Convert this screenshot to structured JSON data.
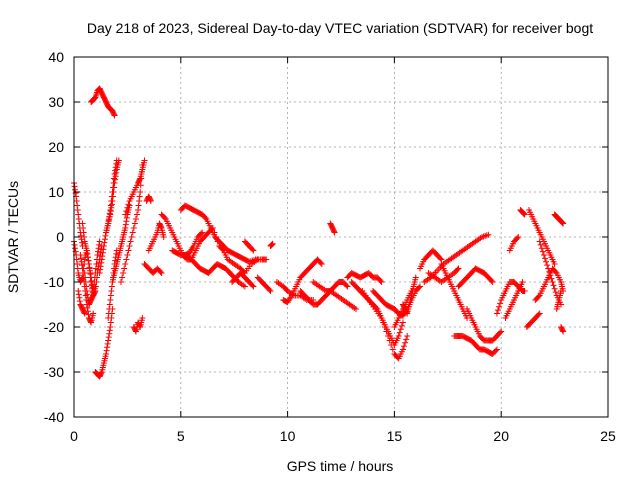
{
  "chart_data": {
    "type": "scatter",
    "title": "Day 218 of 2023, Sidereal Day-to-day VTEC variation (SDTVAR) for receiver bogt",
    "xlabel": "GPS time / hours",
    "ylabel": "SDTVAR / TECUs",
    "xlim": [
      0,
      25
    ],
    "ylim": [
      -40,
      40
    ],
    "xticks": [
      0,
      5,
      10,
      15,
      20,
      25
    ],
    "yticks": [
      -40,
      -30,
      -20,
      -10,
      0,
      10,
      20,
      30,
      40
    ],
    "grid": true,
    "marker": "plus",
    "color": "#ff0000",
    "series": [
      {
        "name": "s01",
        "x": [
          0.0,
          0.1,
          0.2,
          0.3,
          0.4
        ],
        "y": [
          12,
          9,
          5,
          1,
          -2
        ]
      },
      {
        "name": "s02",
        "x": [
          0.0,
          0.1,
          0.2,
          0.3,
          0.4,
          0.5,
          0.6,
          0.7,
          0.8,
          0.9,
          1.0,
          1.1,
          1.2
        ],
        "y": [
          -1,
          -4,
          -8,
          -10,
          -9,
          -5,
          -3,
          -6,
          -9,
          -12,
          -8,
          -4,
          -1
        ]
      },
      {
        "name": "s03",
        "x": [
          0.3,
          0.4,
          0.5,
          0.6,
          0.7,
          0.8,
          0.9
        ],
        "y": [
          -4,
          -7,
          -11,
          -15,
          -18,
          -19,
          -17
        ]
      },
      {
        "name": "s04",
        "x": [
          0.4,
          0.5,
          0.6,
          0.7,
          0.8,
          0.9,
          1.0
        ],
        "y": [
          3,
          -1,
          -3,
          -6,
          -10,
          -13,
          -11
        ]
      },
      {
        "name": "s05",
        "x": [
          0.5,
          0.6,
          0.7,
          0.8,
          0.9,
          1.0,
          1.1,
          1.2,
          1.3
        ],
        "y": [
          -8,
          -12,
          -15,
          -14,
          -13,
          -12,
          -8,
          -5,
          -2
        ]
      },
      {
        "name": "s06",
        "x": [
          0.2,
          0.3,
          0.4,
          0.5
        ],
        "y": [
          -12,
          -15,
          -16,
          -17
        ]
      },
      {
        "name": "s07",
        "x": [
          0.8,
          0.9,
          1.0,
          1.1,
          1.2,
          1.3,
          1.4,
          1.5,
          1.6,
          1.7,
          1.8,
          1.9
        ],
        "y": [
          30,
          30.5,
          31,
          32.5,
          33,
          32,
          31,
          30,
          29,
          28.5,
          28,
          27
        ]
      },
      {
        "name": "s08",
        "x": [
          1.0,
          1.1,
          1.2,
          1.3,
          1.4,
          1.5,
          1.6,
          1.7,
          1.8
        ],
        "y": [
          -30,
          -30.5,
          -31,
          -30,
          -28,
          -26,
          -23,
          -20,
          -16
        ]
      },
      {
        "name": "s09",
        "x": [
          1.2,
          1.3,
          1.4,
          1.5,
          1.6,
          1.7,
          1.8,
          1.9,
          2.0
        ],
        "y": [
          -8,
          -5,
          -2,
          1,
          3,
          6,
          10,
          14,
          17
        ]
      },
      {
        "name": "s10",
        "x": [
          1.6,
          1.7,
          1.8,
          1.9,
          2.0
        ],
        "y": [
          -18,
          -14,
          -10,
          -6,
          -3
        ]
      },
      {
        "name": "s11",
        "x": [
          1.8,
          1.9,
          2.0,
          2.1,
          2.2,
          2.3,
          2.4,
          2.5,
          2.6
        ],
        "y": [
          -10,
          -8,
          -6,
          -4,
          -2,
          0,
          2,
          5,
          7
        ]
      },
      {
        "name": "s12",
        "x": [
          1.5,
          1.6,
          1.7,
          1.8,
          1.9,
          2.0,
          2.1
        ],
        "y": [
          1,
          3,
          5,
          8,
          12,
          15,
          17
        ]
      },
      {
        "name": "s13",
        "x": [
          2.2,
          2.4,
          2.6,
          2.8,
          3.0,
          3.1,
          3.2
        ],
        "y": [
          -10,
          -6,
          -2,
          2,
          6,
          10,
          16
        ]
      },
      {
        "name": "s14",
        "x": [
          2.4,
          2.6,
          2.8,
          3.0,
          3.1,
          3.2,
          3.3
        ],
        "y": [
          5,
          8,
          10,
          12,
          13,
          15,
          17
        ]
      },
      {
        "name": "s15",
        "x": [
          2.8,
          2.9,
          3.0,
          3.1,
          3.2
        ],
        "y": [
          -20,
          -21,
          -19,
          -20,
          -18
        ]
      },
      {
        "name": "s16",
        "x": [
          3.3,
          3.5,
          3.7,
          3.9,
          4.1
        ],
        "y": [
          -6,
          -7,
          -8,
          -7,
          -8
        ]
      },
      {
        "name": "s17",
        "x": [
          3.5,
          3.7,
          3.9,
          4.0,
          4.1,
          4.2
        ],
        "y": [
          -3,
          -1,
          1,
          3,
          2,
          0
        ]
      },
      {
        "name": "s18",
        "x": [
          3.4,
          3.5,
          3.6
        ],
        "y": [
          8,
          9,
          8
        ]
      },
      {
        "name": "s19",
        "x": [
          4.1,
          4.3,
          4.5,
          4.7,
          4.9,
          5.1,
          5.3,
          5.5,
          5.7,
          5.9,
          6.1,
          6.3,
          6.5,
          6.8,
          7.0,
          7.2,
          7.5,
          7.8,
          8.0,
          8.3,
          8.6
        ],
        "y": [
          5,
          4,
          2,
          0,
          -2,
          -4,
          -5,
          -5,
          -3,
          -1,
          0,
          1,
          2,
          -2,
          -3,
          -5,
          -6,
          -7,
          -8,
          -6,
          -5
        ]
      },
      {
        "name": "s20",
        "x": [
          5.0,
          5.2,
          5.4,
          5.6,
          5.8,
          6.0,
          6.2,
          6.4,
          6.6,
          6.8,
          7.0,
          7.2,
          7.4,
          7.6,
          7.8,
          8.0,
          8.2,
          8.5,
          8.8,
          9.0
        ],
        "y": [
          6,
          7,
          6.5,
          6,
          5.5,
          5,
          4,
          2,
          0,
          -1,
          -2,
          -3,
          -3.5,
          -4,
          -4.5,
          -5,
          -5.5,
          -5,
          -5,
          -5
        ]
      },
      {
        "name": "s21",
        "x": [
          4.6,
          4.8,
          5.0,
          5.2,
          5.4,
          5.6,
          5.8,
          6.0
        ],
        "y": [
          -3,
          -3.5,
          -4,
          -4,
          -3.5,
          -2,
          0,
          1
        ]
      },
      {
        "name": "s22",
        "x": [
          5.3,
          5.5,
          5.7,
          5.9,
          6.1,
          6.3,
          6.5,
          6.7,
          6.9,
          7.1,
          7.3,
          7.5,
          7.7,
          8.0
        ],
        "y": [
          -4,
          -5,
          -6,
          -7,
          -7.5,
          -8,
          -7,
          -6,
          -6.5,
          -7,
          -8,
          -9,
          -10,
          -11
        ]
      },
      {
        "name": "s23",
        "x": [
          7.4,
          7.6,
          7.8,
          8.0,
          8.2,
          8.4
        ],
        "y": [
          -10,
          -9,
          -8,
          -9,
          -10,
          -11
        ]
      },
      {
        "name": "s24",
        "x": [
          8.6,
          8.8,
          9.0,
          9.2
        ],
        "y": [
          -9,
          -10,
          -11,
          -12
        ]
      },
      {
        "name": "s25",
        "x": [
          9.2,
          9.3
        ],
        "y": [
          -2,
          -1.5
        ]
      },
      {
        "name": "s26",
        "x": [
          8.0,
          8.2,
          8.4
        ],
        "y": [
          -1,
          -2,
          -3
        ]
      },
      {
        "name": "s27",
        "x": [
          9.5,
          9.8,
          10.0,
          10.3,
          10.6,
          10.9,
          11.2
        ],
        "y": [
          -10,
          -11,
          -12,
          -13,
          -13,
          -14,
          -14
        ]
      },
      {
        "name": "s28",
        "x": [
          9.8,
          10.0,
          10.2,
          10.4,
          10.6,
          10.8,
          11.0,
          11.2,
          11.4,
          11.6
        ],
        "y": [
          -14,
          -14.5,
          -13,
          -11,
          -9,
          -8,
          -7,
          -6,
          -5,
          -6
        ]
      },
      {
        "name": "s29",
        "x": [
          10.6,
          10.8,
          11.0,
          11.2,
          11.4,
          11.6,
          11.8,
          12.0,
          12.2,
          12.4,
          12.6,
          12.8
        ],
        "y": [
          -12,
          -13,
          -14,
          -15,
          -15,
          -14,
          -13,
          -12,
          -11,
          -10,
          -10,
          -11
        ]
      },
      {
        "name": "s30",
        "x": [
          11.2,
          11.5,
          11.8,
          12.0,
          12.3,
          12.6,
          12.9,
          13.2
        ],
        "y": [
          -10,
          -11,
          -12,
          -12,
          -13,
          -14,
          -15,
          -16
        ]
      },
      {
        "name": "s31",
        "x": [
          12.0,
          12.1,
          12.2
        ],
        "y": [
          3,
          2,
          1
        ]
      },
      {
        "name": "s32",
        "x": [
          12.8,
          13.0,
          13.2,
          13.4,
          13.6,
          13.8,
          14.0,
          14.2,
          14.4
        ],
        "y": [
          -9,
          -8,
          -8.5,
          -9,
          -8.5,
          -8,
          -9,
          -9,
          -10
        ]
      },
      {
        "name": "s33",
        "x": [
          13.0,
          13.2,
          13.4,
          13.6,
          13.8,
          14.0,
          14.2,
          14.4,
          14.6,
          14.8,
          15.0,
          15.2,
          15.4
        ],
        "y": [
          -10,
          -11,
          -12,
          -13,
          -14,
          -15,
          -16,
          -18,
          -20,
          -22,
          -24,
          -22,
          -19
        ]
      },
      {
        "name": "s34",
        "x": [
          13.5,
          13.8,
          14.1,
          14.4,
          14.7,
          15.0,
          15.2,
          15.4,
          15.6
        ],
        "y": [
          -12,
          -14,
          -16,
          -18,
          -22,
          -26,
          -27,
          -25,
          -22
        ]
      },
      {
        "name": "s35",
        "x": [
          14.0,
          14.2,
          14.4,
          14.6,
          14.8,
          15.0,
          15.2,
          15.4,
          15.6,
          15.8,
          16.0,
          16.2
        ],
        "y": [
          -12,
          -13,
          -14,
          -15,
          -15.5,
          -16,
          -17,
          -17.5,
          -16,
          -14,
          -12,
          -11
        ]
      },
      {
        "name": "s36",
        "x": [
          15.4,
          15.5,
          15.6,
          15.7,
          15.8,
          15.9,
          16.0
        ],
        "y": [
          -15,
          -16,
          -17,
          -15,
          -13,
          -11,
          -9
        ]
      },
      {
        "name": "s37",
        "x": [
          15.0,
          15.2,
          15.4,
          15.6,
          15.8
        ],
        "y": [
          -20,
          -18,
          -16,
          -14,
          -12
        ]
      },
      {
        "name": "s38",
        "x": [
          16.2,
          16.4,
          16.6,
          16.8,
          17.0,
          17.2
        ],
        "y": [
          -7,
          -5,
          -4,
          -3,
          -4,
          -5
        ]
      },
      {
        "name": "s39",
        "x": [
          16.4,
          16.7,
          17.0,
          17.3,
          17.6,
          17.9,
          18.2,
          18.5,
          18.8,
          19.1,
          19.4
        ],
        "y": [
          -10,
          -9,
          -7.5,
          -6,
          -5,
          -4,
          -3,
          -2,
          -1,
          0,
          0.5
        ]
      },
      {
        "name": "s40",
        "x": [
          16.6,
          16.9,
          17.2,
          17.5,
          17.8,
          18.0
        ],
        "y": [
          -8,
          -9,
          -10,
          -9,
          -8,
          -7
        ]
      },
      {
        "name": "s41",
        "x": [
          17.2,
          17.4,
          17.6,
          17.8,
          18.0,
          18.2,
          18.4
        ],
        "y": [
          -6,
          -8,
          -10,
          -12,
          -14,
          -16,
          -18
        ]
      },
      {
        "name": "s42",
        "x": [
          18.0,
          18.2,
          18.4,
          18.6,
          18.8,
          19.0,
          19.2,
          19.4,
          19.6
        ],
        "y": [
          -11,
          -10,
          -9,
          -8,
          -7,
          -7.5,
          -8,
          -9,
          -10
        ]
      },
      {
        "name": "s43",
        "x": [
          17.8,
          18.0,
          18.2,
          18.4,
          18.6,
          18.8,
          19.0,
          19.2,
          19.4,
          19.6,
          19.8
        ],
        "y": [
          -22,
          -22,
          -22,
          -22.5,
          -23,
          -24,
          -25,
          -25,
          -25.5,
          -26,
          -25
        ]
      },
      {
        "name": "s44",
        "x": [
          18.4,
          18.6,
          18.8,
          19.0,
          19.2,
          19.4,
          19.6,
          19.8,
          20.0
        ],
        "y": [
          -16,
          -18,
          -20,
          -22,
          -23,
          -23,
          -23,
          -22,
          -21
        ]
      },
      {
        "name": "s45",
        "x": [
          19.8,
          20.0,
          20.2,
          20.4,
          20.6,
          20.8,
          21.0,
          21.1
        ],
        "y": [
          -17,
          -14,
          -12,
          -10,
          -10,
          -11,
          -12,
          -12
        ]
      },
      {
        "name": "s46",
        "x": [
          20.4,
          20.6,
          20.8
        ],
        "y": [
          -3,
          -1,
          0
        ]
      },
      {
        "name": "s47",
        "x": [
          20.2,
          20.4,
          20.6,
          20.8,
          21.0
        ],
        "y": [
          -18,
          -16,
          -14,
          -12,
          -10
        ]
      },
      {
        "name": "s48",
        "x": [
          21.6,
          21.8,
          22.0,
          22.2,
          22.4,
          22.6,
          22.8,
          22.9
        ],
        "y": [
          -14,
          -13,
          -11,
          -9,
          -7,
          -8,
          -10,
          -12
        ]
      },
      {
        "name": "s49",
        "x": [
          20.9,
          21.0,
          21.1
        ],
        "y": [
          6,
          5.5,
          5
        ]
      },
      {
        "name": "s50",
        "x": [
          21.3,
          21.5,
          21.7,
          21.9,
          22.1,
          22.3,
          22.5
        ],
        "y": [
          6,
          4,
          2,
          0,
          -2,
          -4,
          -6
        ]
      },
      {
        "name": "s51",
        "x": [
          21.8,
          22.0,
          22.2,
          22.4,
          22.6,
          22.8
        ],
        "y": [
          -1,
          -4,
          -7,
          -10,
          -13,
          -15
        ]
      },
      {
        "name": "s52",
        "x": [
          22.5,
          22.6,
          22.7,
          22.8,
          22.9
        ],
        "y": [
          5,
          4.5,
          4,
          3.5,
          3
        ]
      },
      {
        "name": "s53",
        "x": [
          21.2,
          21.4,
          21.6,
          21.8
        ],
        "y": [
          -20,
          -19,
          -18,
          -17
        ]
      },
      {
        "name": "s54",
        "x": [
          22.8,
          22.9
        ],
        "y": [
          -20,
          -21
        ]
      },
      {
        "name": "s55",
        "x": [
          22.6,
          22.7,
          22.8
        ],
        "y": [
          -16,
          -14,
          -12
        ]
      }
    ]
  }
}
